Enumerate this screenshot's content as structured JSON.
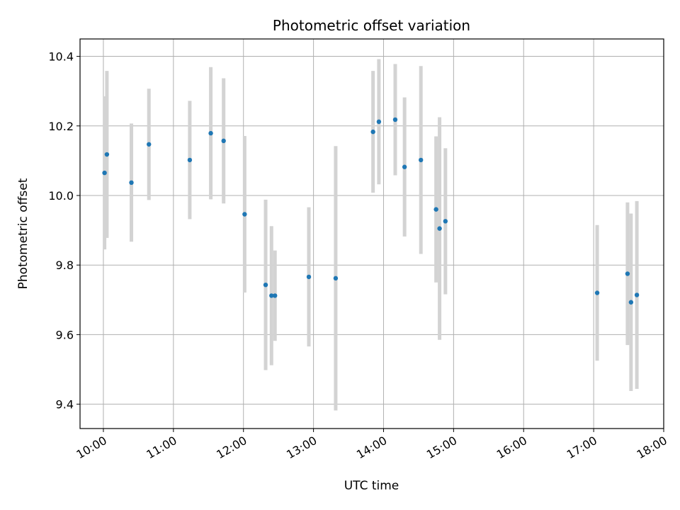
{
  "chart_data": {
    "type": "scatter",
    "title": "Photometric offset variation",
    "xlabel": "UTC time",
    "ylabel": "Photometric offset",
    "xlim": [
      "09:40",
      "18:00"
    ],
    "ylim": [
      9.33,
      10.45
    ],
    "x_ticks": [
      "10:00",
      "11:00",
      "12:00",
      "13:00",
      "14:00",
      "15:00",
      "16:00",
      "17:00",
      "18:00"
    ],
    "y_ticks": [
      9.4,
      9.6,
      9.8,
      10.0,
      10.2,
      10.4
    ],
    "y_tick_labels": [
      "9.4",
      "9.6",
      "9.8",
      "10.0",
      "10.2",
      "10.4"
    ],
    "grid": true,
    "point_color": "#1f77b4",
    "errorbar_color": "#d3d3d3",
    "points": [
      {
        "x": "10:01",
        "y": 10.065,
        "err": 0.22
      },
      {
        "x": "10:03",
        "y": 10.118,
        "err": 0.24
      },
      {
        "x": "10:24",
        "y": 10.037,
        "err": 0.17
      },
      {
        "x": "10:39",
        "y": 10.147,
        "err": 0.16
      },
      {
        "x": "11:14",
        "y": 10.102,
        "err": 0.17
      },
      {
        "x": "11:32",
        "y": 10.179,
        "err": 0.19
      },
      {
        "x": "11:43",
        "y": 10.157,
        "err": 0.18
      },
      {
        "x": "12:01",
        "y": 9.946,
        "err": 0.225
      },
      {
        "x": "12:19",
        "y": 9.743,
        "err": 0.245
      },
      {
        "x": "12:24",
        "y": 9.712,
        "err": 0.2
      },
      {
        "x": "12:27",
        "y": 9.712,
        "err": 0.13
      },
      {
        "x": "12:56",
        "y": 9.766,
        "err": 0.2
      },
      {
        "x": "13:19",
        "y": 9.762,
        "err": 0.38
      },
      {
        "x": "13:51",
        "y": 10.183,
        "err": 0.175
      },
      {
        "x": "13:56",
        "y": 10.212,
        "err": 0.18
      },
      {
        "x": "14:10",
        "y": 10.218,
        "err": 0.16
      },
      {
        "x": "14:18",
        "y": 10.082,
        "err": 0.2
      },
      {
        "x": "14:32",
        "y": 10.102,
        "err": 0.27
      },
      {
        "x": "14:45",
        "y": 9.96,
        "err": 0.21
      },
      {
        "x": "14:48",
        "y": 9.905,
        "err": 0.32
      },
      {
        "x": "14:53",
        "y": 9.926,
        "err": 0.21
      },
      {
        "x": "17:03",
        "y": 9.72,
        "err": 0.195
      },
      {
        "x": "17:29",
        "y": 9.775,
        "err": 0.205
      },
      {
        "x": "17:32",
        "y": 9.693,
        "err": 0.255
      },
      {
        "x": "17:37",
        "y": 9.714,
        "err": 0.27
      }
    ]
  }
}
